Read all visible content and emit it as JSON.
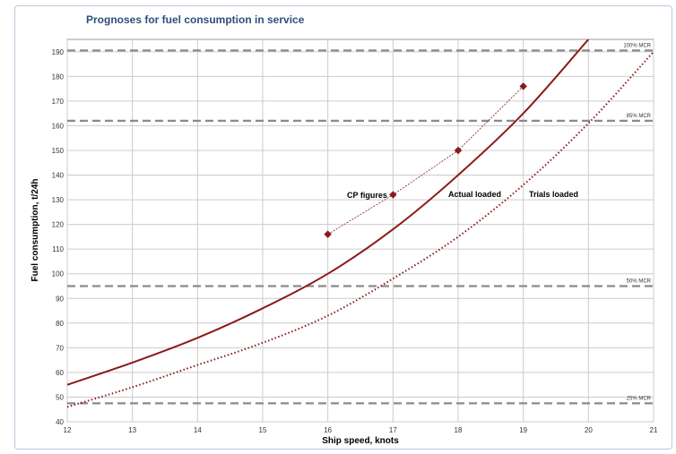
{
  "colors": {
    "accent": "#8b1a1a",
    "title": "#2d4f7c",
    "grid": "#cccccc",
    "mcr": "#8a8a8a"
  },
  "chart_data": {
    "type": "line",
    "title": "Prognoses for fuel consumption in service",
    "xlabel": "Ship speed, knots",
    "ylabel": "Fuel consumption, t/24h",
    "xlim": [
      12,
      21
    ],
    "ylim": [
      40,
      195
    ],
    "x_ticks": [
      "12",
      "13",
      "14",
      "15",
      "16",
      "17",
      "18",
      "19",
      "20",
      "21"
    ],
    "y_ticks": [
      "40",
      "50",
      "60",
      "70",
      "80",
      "90",
      "100",
      "110",
      "120",
      "130",
      "140",
      "150",
      "160",
      "170",
      "180",
      "190"
    ],
    "grid": true,
    "series": [
      {
        "name": "Actual loaded",
        "style": "solid",
        "x": [
          12,
          13,
          14,
          15,
          16,
          17,
          18,
          19,
          20
        ],
        "y": [
          55,
          64,
          74,
          86,
          100,
          118,
          140,
          165,
          195
        ]
      },
      {
        "name": "Trials loaded",
        "style": "dotted",
        "x": [
          12,
          13,
          14,
          15,
          16,
          17,
          18,
          19,
          20,
          21
        ],
        "y": [
          46,
          54,
          63,
          72,
          83,
          98,
          115,
          136,
          161,
          190
        ]
      },
      {
        "name": "CP figures",
        "style": "thin-markers",
        "x": [
          16,
          17,
          18,
          19
        ],
        "y": [
          116,
          132,
          150,
          176
        ]
      }
    ],
    "reference_lines": [
      {
        "label": "100% MCR",
        "y": 190.5
      },
      {
        "label": "85% MCR",
        "y": 162
      },
      {
        "label": "50% MCR",
        "y": 95
      },
      {
        "label": "25% MCR",
        "y": 47.5
      }
    ]
  }
}
